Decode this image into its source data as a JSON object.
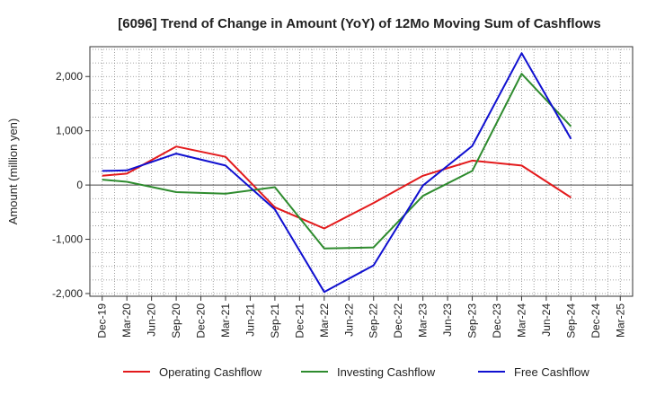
{
  "chart_data": {
    "type": "line",
    "title": "[6096]  Trend of Change in Amount (YoY) of 12Mo Moving Sum of Cashflows",
    "xlabel": "",
    "ylabel": "Amount (million yen)",
    "ylim": [
      -2050,
      2550
    ],
    "yticks": [
      -2000,
      -1000,
      0,
      1000,
      2000
    ],
    "ytick_labels": [
      "-2,000",
      "-1,000",
      "0",
      "1,000",
      "2,000"
    ],
    "categories": [
      "Dec-19",
      "Mar-20",
      "Jun-20",
      "Sep-20",
      "Dec-20",
      "Mar-21",
      "Jun-21",
      "Sep-21",
      "Dec-21",
      "Mar-22",
      "Jun-22",
      "Sep-22",
      "Dec-22",
      "Mar-23",
      "Jun-23",
      "Sep-23",
      "Dec-23",
      "Mar-24",
      "Jun-24",
      "Sep-24",
      "Dec-24",
      "Mar-25"
    ],
    "grid": true,
    "legend_position": "bottom",
    "series": [
      {
        "name": "Operating Cashflow",
        "color": "#e31a1c",
        "values": [
          170,
          210,
          null,
          710,
          null,
          520,
          null,
          -410,
          null,
          -800,
          null,
          -330,
          null,
          170,
          null,
          450,
          null,
          360,
          null,
          -230,
          null,
          null
        ]
      },
      {
        "name": "Investing Cashflow",
        "color": "#2e8b2e",
        "values": [
          100,
          60,
          null,
          -130,
          null,
          -160,
          null,
          -40,
          null,
          -1170,
          null,
          -1150,
          null,
          -200,
          null,
          260,
          null,
          2050,
          null,
          1080,
          null,
          null
        ]
      },
      {
        "name": "Free Cashflow",
        "color": "#1010d0",
        "values": [
          260,
          270,
          null,
          580,
          null,
          360,
          null,
          -450,
          null,
          -1970,
          null,
          -1480,
          null,
          -10,
          null,
          720,
          null,
          2430,
          null,
          850,
          null,
          null
        ]
      }
    ]
  }
}
